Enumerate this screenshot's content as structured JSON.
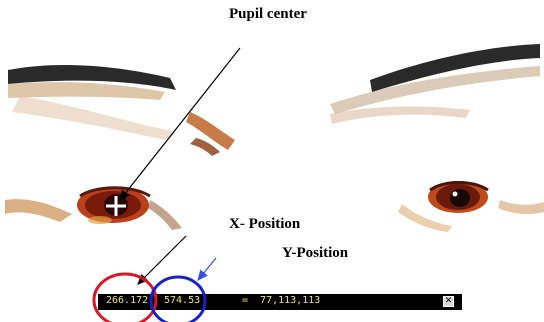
{
  "annotations": {
    "pupil_center": "Pupil center",
    "x_position": "X- Position",
    "y_position": "Y-Position"
  },
  "status_bar": {
    "x_value": "266.172,",
    "y_value": "574.53",
    "rgb_readout": "=  77,113,113",
    "close_icon": "close-icon"
  },
  "colors": {
    "highlight_x": "#d8182a",
    "highlight_y": "#1a20c8",
    "pointer_y": "#3a52e0",
    "status_text": "#e8e86a",
    "status_bg": "#000000"
  }
}
